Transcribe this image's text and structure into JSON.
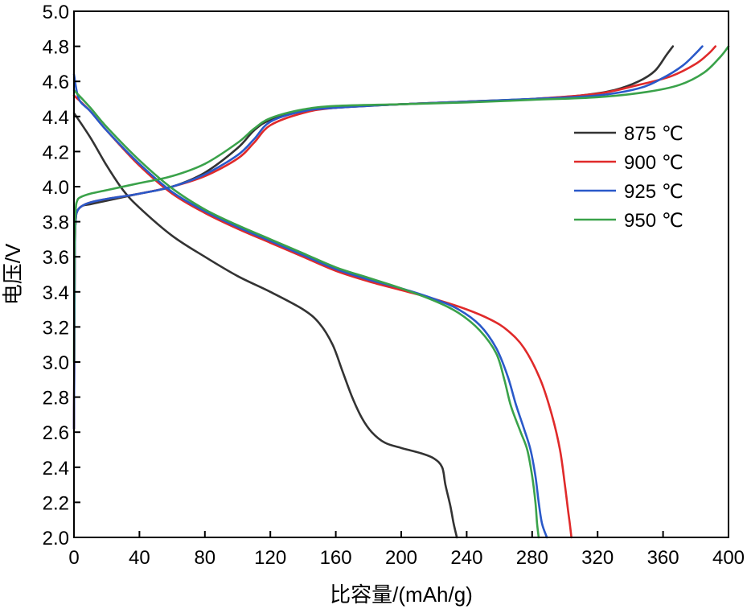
{
  "chart_data": {
    "type": "line",
    "title": "",
    "xlabel": "比容量/(mAh/g)",
    "ylabel": "电压/V",
    "xlim": [
      0,
      400
    ],
    "ylim": [
      2.0,
      5.0
    ],
    "xticks": [
      "0",
      "40",
      "80",
      "120",
      "160",
      "200",
      "240",
      "280",
      "320",
      "360",
      "400"
    ],
    "yticks": [
      "2.0",
      "2.2",
      "2.4",
      "2.6",
      "2.8",
      "3.0",
      "3.2",
      "3.4",
      "3.6",
      "3.8",
      "4.0",
      "4.2",
      "4.4",
      "4.6",
      "4.8",
      "5.0"
    ],
    "grid": false,
    "legend_position": "right",
    "series": [
      {
        "name": "875 ℃",
        "color": "#333333",
        "charge": [
          [
            0,
            2.62
          ],
          [
            0.5,
            3.6
          ],
          [
            1,
            3.8
          ],
          [
            2,
            3.86
          ],
          [
            5,
            3.89
          ],
          [
            10,
            3.9
          ],
          [
            20,
            3.92
          ],
          [
            40,
            3.96
          ],
          [
            60,
            4.0
          ],
          [
            80,
            4.08
          ],
          [
            100,
            4.22
          ],
          [
            110,
            4.32
          ],
          [
            120,
            4.38
          ],
          [
            140,
            4.43
          ],
          [
            160,
            4.45
          ],
          [
            200,
            4.47
          ],
          [
            240,
            4.485
          ],
          [
            280,
            4.5
          ],
          [
            310,
            4.52
          ],
          [
            330,
            4.55
          ],
          [
            345,
            4.6
          ],
          [
            355,
            4.66
          ],
          [
            362,
            4.75
          ],
          [
            366,
            4.8
          ]
        ],
        "discharge": [
          [
            0,
            4.42
          ],
          [
            10,
            4.28
          ],
          [
            20,
            4.12
          ],
          [
            30,
            3.98
          ],
          [
            40,
            3.88
          ],
          [
            60,
            3.72
          ],
          [
            80,
            3.6
          ],
          [
            100,
            3.49
          ],
          [
            120,
            3.4
          ],
          [
            140,
            3.3
          ],
          [
            150,
            3.22
          ],
          [
            158,
            3.1
          ],
          [
            164,
            2.95
          ],
          [
            170,
            2.8
          ],
          [
            176,
            2.68
          ],
          [
            182,
            2.6
          ],
          [
            190,
            2.54
          ],
          [
            200,
            2.51
          ],
          [
            212,
            2.48
          ],
          [
            220,
            2.45
          ],
          [
            225,
            2.4
          ],
          [
            227,
            2.3
          ],
          [
            230,
            2.18
          ],
          [
            232,
            2.08
          ],
          [
            234,
            2.0
          ]
        ]
      },
      {
        "name": "900 ℃",
        "color": "#e02a2a",
        "charge": [
          [
            0,
            2.62
          ],
          [
            0.5,
            3.6
          ],
          [
            1,
            3.8
          ],
          [
            2,
            3.86
          ],
          [
            5,
            3.89
          ],
          [
            10,
            3.91
          ],
          [
            20,
            3.93
          ],
          [
            40,
            3.96
          ],
          [
            60,
            4.0
          ],
          [
            80,
            4.06
          ],
          [
            100,
            4.16
          ],
          [
            110,
            4.25
          ],
          [
            120,
            4.35
          ],
          [
            140,
            4.42
          ],
          [
            160,
            4.45
          ],
          [
            200,
            4.47
          ],
          [
            240,
            4.485
          ],
          [
            280,
            4.5
          ],
          [
            320,
            4.53
          ],
          [
            345,
            4.58
          ],
          [
            365,
            4.63
          ],
          [
            380,
            4.7
          ],
          [
            388,
            4.76
          ],
          [
            392,
            4.8
          ]
        ],
        "discharge": [
          [
            0,
            4.52
          ],
          [
            10,
            4.43
          ],
          [
            20,
            4.32
          ],
          [
            40,
            4.12
          ],
          [
            60,
            3.96
          ],
          [
            80,
            3.85
          ],
          [
            100,
            3.76
          ],
          [
            120,
            3.68
          ],
          [
            140,
            3.6
          ],
          [
            160,
            3.52
          ],
          [
            180,
            3.46
          ],
          [
            200,
            3.41
          ],
          [
            220,
            3.36
          ],
          [
            240,
            3.3
          ],
          [
            255,
            3.24
          ],
          [
            265,
            3.18
          ],
          [
            275,
            3.08
          ],
          [
            285,
            2.9
          ],
          [
            292,
            2.7
          ],
          [
            297,
            2.5
          ],
          [
            300,
            2.3
          ],
          [
            302,
            2.15
          ],
          [
            303,
            2.08
          ],
          [
            304,
            2.0
          ]
        ]
      },
      {
        "name": "925 ℃",
        "color": "#2a59c9",
        "charge": [
          [
            0,
            2.62
          ],
          [
            0.5,
            3.6
          ],
          [
            1,
            3.8
          ],
          [
            2,
            3.86
          ],
          [
            5,
            3.89
          ],
          [
            10,
            3.91
          ],
          [
            20,
            3.93
          ],
          [
            40,
            3.96
          ],
          [
            60,
            4.0
          ],
          [
            80,
            4.07
          ],
          [
            100,
            4.18
          ],
          [
            110,
            4.27
          ],
          [
            120,
            4.37
          ],
          [
            140,
            4.43
          ],
          [
            160,
            4.45
          ],
          [
            200,
            4.47
          ],
          [
            240,
            4.485
          ],
          [
            280,
            4.5
          ],
          [
            320,
            4.52
          ],
          [
            345,
            4.56
          ],
          [
            360,
            4.62
          ],
          [
            372,
            4.69
          ],
          [
            380,
            4.76
          ],
          [
            384,
            4.8
          ]
        ],
        "discharge": [
          [
            0,
            4.64
          ],
          [
            3,
            4.5
          ],
          [
            10,
            4.43
          ],
          [
            20,
            4.32
          ],
          [
            40,
            4.13
          ],
          [
            60,
            3.97
          ],
          [
            80,
            3.86
          ],
          [
            100,
            3.77
          ],
          [
            120,
            3.69
          ],
          [
            140,
            3.61
          ],
          [
            160,
            3.53
          ],
          [
            180,
            3.47
          ],
          [
            200,
            3.42
          ],
          [
            220,
            3.36
          ],
          [
            235,
            3.3
          ],
          [
            248,
            3.21
          ],
          [
            258,
            3.08
          ],
          [
            265,
            2.92
          ],
          [
            270,
            2.76
          ],
          [
            275,
            2.62
          ],
          [
            279,
            2.5
          ],
          [
            282,
            2.35
          ],
          [
            284,
            2.2
          ],
          [
            286,
            2.08
          ],
          [
            289,
            2.0
          ]
        ]
      },
      {
        "name": "950 ℃",
        "color": "#3aa24a",
        "charge": [
          [
            0,
            3.0
          ],
          [
            0.3,
            3.6
          ],
          [
            1,
            3.86
          ],
          [
            2,
            3.92
          ],
          [
            4,
            3.94
          ],
          [
            10,
            3.96
          ],
          [
            20,
            3.98
          ],
          [
            40,
            4.02
          ],
          [
            60,
            4.06
          ],
          [
            80,
            4.13
          ],
          [
            100,
            4.25
          ],
          [
            110,
            4.33
          ],
          [
            120,
            4.39
          ],
          [
            140,
            4.44
          ],
          [
            160,
            4.46
          ],
          [
            200,
            4.47
          ],
          [
            240,
            4.48
          ],
          [
            280,
            4.495
          ],
          [
            320,
            4.51
          ],
          [
            350,
            4.54
          ],
          [
            370,
            4.58
          ],
          [
            385,
            4.65
          ],
          [
            395,
            4.74
          ],
          [
            400,
            4.8
          ]
        ],
        "discharge": [
          [
            0,
            4.55
          ],
          [
            10,
            4.45
          ],
          [
            20,
            4.34
          ],
          [
            40,
            4.15
          ],
          [
            60,
            3.99
          ],
          [
            80,
            3.87
          ],
          [
            100,
            3.78
          ],
          [
            120,
            3.7
          ],
          [
            140,
            3.62
          ],
          [
            160,
            3.54
          ],
          [
            180,
            3.48
          ],
          [
            200,
            3.42
          ],
          [
            220,
            3.35
          ],
          [
            235,
            3.28
          ],
          [
            248,
            3.18
          ],
          [
            258,
            3.05
          ],
          [
            263,
            2.9
          ],
          [
            267,
            2.75
          ],
          [
            273,
            2.6
          ],
          [
            277,
            2.5
          ],
          [
            280,
            2.35
          ],
          [
            282,
            2.2
          ],
          [
            283,
            2.08
          ],
          [
            284,
            2.0
          ]
        ]
      }
    ]
  }
}
